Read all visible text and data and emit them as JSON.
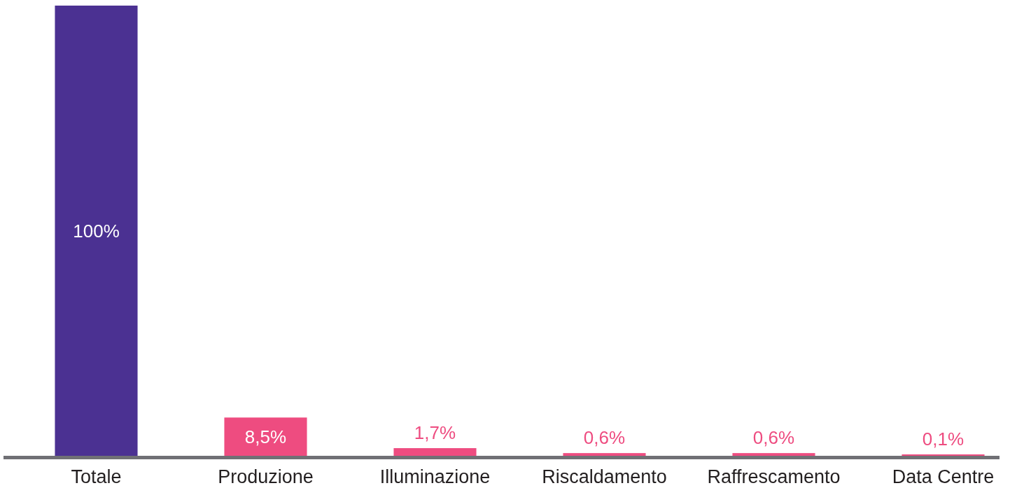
{
  "chart_data": {
    "type": "bar",
    "categories": [
      "Totale",
      "Produzione",
      "Illuminazione",
      "Riscaldamento",
      "Raffrescamento",
      "Data Centre"
    ],
    "values": [
      100,
      8.5,
      1.7,
      0.6,
      0.6,
      0.1
    ],
    "colors": [
      "#4b3192",
      "#ee4c80",
      "#ee4c80",
      "#ee4c80",
      "#ee4c80",
      "#ee4c80"
    ],
    "value_labels": [
      "100%",
      "8,5%",
      "1,7%",
      "0,6%",
      "0,6%",
      "0,1%"
    ]
  }
}
